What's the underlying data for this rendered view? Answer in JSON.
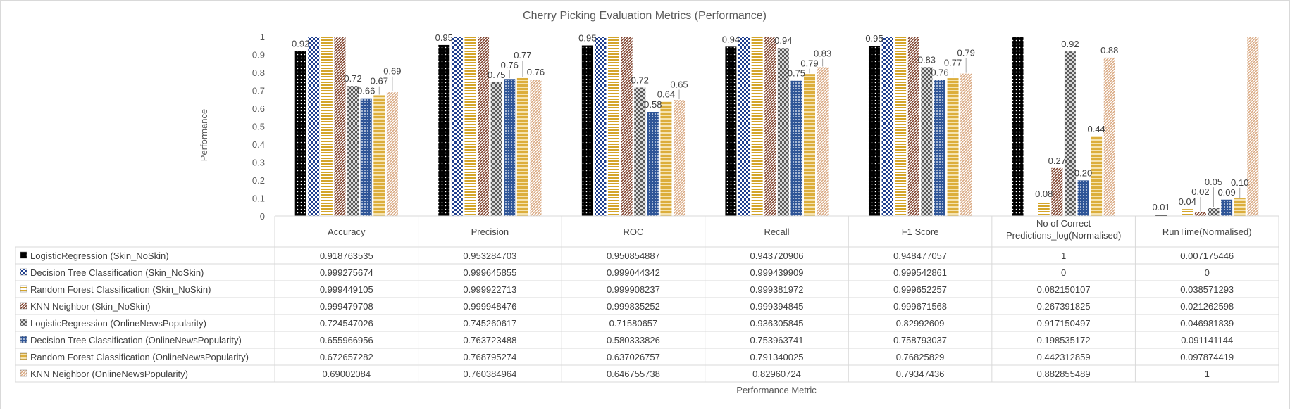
{
  "chart_data": {
    "type": "bar",
    "title": "Cherry Picking Evaluation Metrics (Performance)",
    "xlabel": "Performance Metric",
    "ylabel": "Performance",
    "ylim": [
      0,
      1
    ],
    "yticks": [
      "0",
      "0.1",
      "0.2",
      "0.3",
      "0.4",
      "0.5",
      "0.6",
      "0.7",
      "0.8",
      "0.9",
      "1"
    ],
    "grid": false,
    "legend": "data-table-below",
    "categories": [
      [
        "Accuracy"
      ],
      [
        "Precision"
      ],
      [
        "ROC"
      ],
      [
        "Recall"
      ],
      [
        "F1 Score"
      ],
      [
        "No of Correct",
        "Predictions_log(Normalised)"
      ],
      [
        "RunTime(Normalised)"
      ]
    ],
    "series": [
      {
        "name": "LogisticRegression (Skin_NoSkin)",
        "pattern": "dots-black",
        "values": [
          0.918763535,
          0.953284703,
          0.950854887,
          0.943720906,
          0.948477057,
          1,
          0.007175446
        ],
        "table_values": [
          "0.918763535",
          "0.953284703",
          "0.950854887",
          "0.943720906",
          "0.948477057",
          "1",
          "0.007175446"
        ],
        "labels": [
          "0.92",
          "0.95",
          "0.95",
          "0.94",
          "0.95",
          "",
          "0.01"
        ]
      },
      {
        "name": "Decision Tree Classification (Skin_NoSkin)",
        "pattern": "checker-blue",
        "values": [
          0.999275674,
          0.999645855,
          0.999044342,
          0.999439909,
          0.999542861,
          0,
          0
        ],
        "table_values": [
          "0.999275674",
          "0.999645855",
          "0.999044342",
          "0.999439909",
          "0.999542861",
          "0",
          "0"
        ],
        "labels": [
          "",
          "",
          "",
          "",
          "",
          "",
          ""
        ]
      },
      {
        "name": "Random Forest Classification (Skin_NoSkin)",
        "pattern": "hlines-gold",
        "values": [
          0.999449105,
          0.999922713,
          0.999908237,
          0.999381972,
          0.999652257,
          0.082150107,
          0.038571293
        ],
        "table_values": [
          "0.999449105",
          "0.999922713",
          "0.999908237",
          "0.999381972",
          "0.999652257",
          "0.082150107",
          "0.038571293"
        ],
        "labels": [
          "",
          "",
          "",
          "",
          "",
          "0.08",
          "0.04"
        ]
      },
      {
        "name": "KNN Neighbor (Skin_NoSkin)",
        "pattern": "diag-brown",
        "values": [
          0.999479708,
          0.999948476,
          0.999835252,
          0.999394845,
          0.999671568,
          0.267391825,
          0.021262598
        ],
        "table_values": [
          "0.999479708",
          "0.999948476",
          "0.999835252",
          "0.999394845",
          "0.999671568",
          "0.267391825",
          "0.021262598"
        ],
        "labels": [
          "",
          "",
          "",
          "",
          "",
          "0.27",
          "0.02"
        ]
      },
      {
        "name": "LogisticRegression (OnlineNewsPopularity)",
        "pattern": "checker-gray",
        "values": [
          0.724547026,
          0.745260617,
          0.71580657,
          0.936305845,
          0.82992609,
          0.917150497,
          0.046981839
        ],
        "table_values": [
          "0.724547026",
          "0.745260617",
          "0.71580657",
          "0.936305845",
          "0.82992609",
          "0.917150497",
          "0.046981839"
        ],
        "labels": [
          "0.72",
          "0.75",
          "0.72",
          "0.94",
          "0.83",
          "0.92",
          "0.05"
        ]
      },
      {
        "name": "Decision Tree Classification (OnlineNewsPopularity)",
        "pattern": "dots-blue",
        "values": [
          0.655966956,
          0.763723488,
          0.580333826,
          0.753963741,
          0.758793037,
          0.198535172,
          0.091141144
        ],
        "table_values": [
          "0.655966956",
          "0.763723488",
          "0.580333826",
          "0.753963741",
          "0.758793037",
          "0.198535172",
          "0.091141144"
        ],
        "labels": [
          "0.66",
          "0.76",
          "0.58",
          "0.75",
          "0.76",
          "0.20",
          "0.09"
        ]
      },
      {
        "name": "Random Forest Classification (OnlineNewsPopularity)",
        "pattern": "hlines-gold-thick",
        "values": [
          0.672657282,
          0.768795274,
          0.637026757,
          0.791340025,
          0.76825829,
          0.442312859,
          0.097874419
        ],
        "table_values": [
          "0.672657282",
          "0.768795274",
          "0.637026757",
          "0.791340025",
          "0.76825829",
          "0.442312859",
          "0.097874419"
        ],
        "labels": [
          "0.67",
          "0.77",
          "0.64",
          "0.79",
          "0.77",
          "0.44",
          "0.10"
        ]
      },
      {
        "name": "KNN Neighbor (OnlineNewsPopularity)",
        "pattern": "diag-tan",
        "values": [
          0.69002084,
          0.760384964,
          0.646755738,
          0.82960724,
          0.79347436,
          0.882855489,
          1
        ],
        "table_values": [
          "0.69002084",
          "0.760384964",
          "0.646755738",
          "0.82960724",
          "0.79347436",
          "0.882855489",
          "1"
        ],
        "labels": [
          "0.69",
          "0.76",
          "0.65",
          "0.83",
          "0.79",
          "0.88",
          ""
        ]
      }
    ]
  }
}
